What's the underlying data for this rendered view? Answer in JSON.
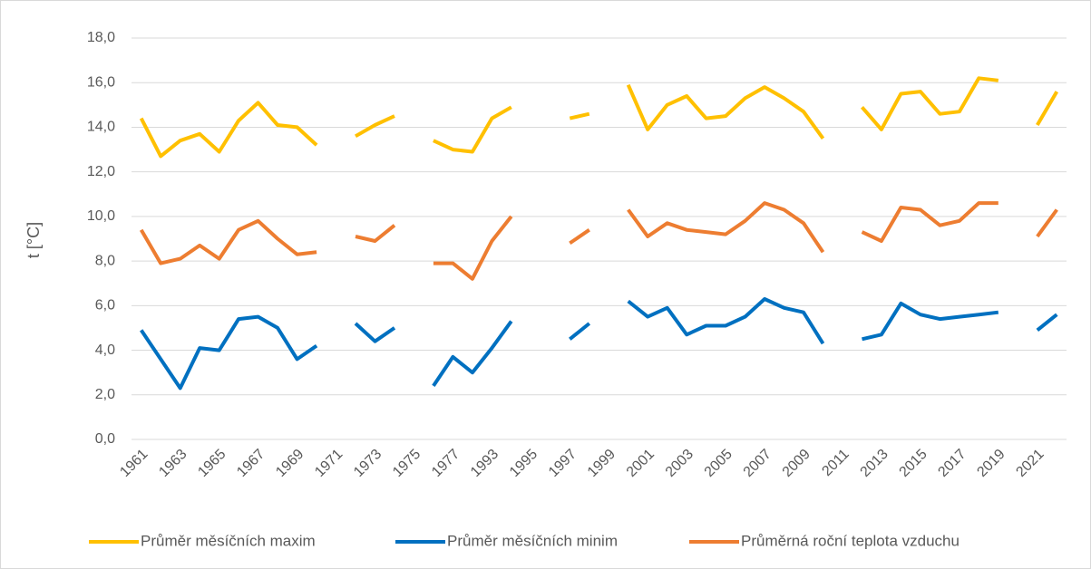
{
  "chart_data": {
    "type": "line",
    "ylabel": "t [°C]",
    "categories": [
      "1961",
      null,
      "1963",
      null,
      "1965",
      null,
      "1967",
      null,
      "1969",
      null,
      "1971",
      null,
      "1973",
      null,
      "1975",
      null,
      "1977",
      null,
      "1993",
      null,
      "1995",
      null,
      "1997",
      null,
      "1999",
      null,
      "2001",
      null,
      "2003",
      null,
      "2005",
      null,
      "2007",
      null,
      "2009",
      null,
      "2011",
      null,
      "2013",
      null,
      "2015",
      null,
      "2017",
      null,
      "2019",
      null,
      "2021",
      null
    ],
    "series": [
      {
        "name": "Průměr měsíčních maxim",
        "color": "#FFC000",
        "values": [
          14.4,
          12.7,
          13.4,
          13.7,
          12.9,
          14.3,
          15.1,
          14.1,
          14.0,
          13.2,
          null,
          13.6,
          14.1,
          14.5,
          null,
          13.4,
          13.0,
          12.9,
          14.4,
          14.9,
          null,
          null,
          14.4,
          14.6,
          null,
          15.9,
          13.9,
          15.0,
          15.4,
          14.4,
          14.5,
          15.3,
          15.8,
          15.3,
          14.7,
          13.5,
          null,
          14.9,
          13.9,
          15.5,
          15.6,
          14.6,
          14.7,
          16.2,
          16.1,
          null,
          14.1,
          15.6
        ]
      },
      {
        "name": "Průměr měsíčních minim",
        "color": "#0070C0",
        "values": [
          4.9,
          3.6,
          2.3,
          4.1,
          4.0,
          5.4,
          5.5,
          5.0,
          3.6,
          4.2,
          null,
          5.2,
          4.4,
          5.0,
          null,
          2.4,
          3.7,
          3.0,
          4.1,
          5.3,
          null,
          null,
          4.5,
          5.2,
          null,
          6.2,
          5.5,
          5.9,
          4.7,
          5.1,
          5.1,
          5.5,
          6.3,
          5.9,
          5.7,
          4.3,
          null,
          4.5,
          4.7,
          6.1,
          5.6,
          5.4,
          5.5,
          5.6,
          5.7,
          null,
          4.9,
          5.6
        ]
      },
      {
        "name": "Průměrná roční teplota vzduchu",
        "color": "#ED7D31",
        "values": [
          9.4,
          7.9,
          8.1,
          8.7,
          8.1,
          9.4,
          9.8,
          9.0,
          8.3,
          8.4,
          null,
          9.1,
          8.9,
          9.6,
          null,
          7.9,
          7.9,
          7.2,
          8.9,
          10.0,
          null,
          null,
          8.8,
          9.4,
          null,
          10.3,
          9.1,
          9.7,
          9.4,
          9.3,
          9.2,
          9.8,
          10.6,
          10.3,
          9.7,
          8.4,
          null,
          9.3,
          8.9,
          10.4,
          10.3,
          9.6,
          9.8,
          10.6,
          10.6,
          null,
          9.1,
          10.3
        ]
      }
    ],
    "ylim": [
      0,
      18
    ],
    "yticks": [
      {
        "value": 0,
        "label": "0,0"
      },
      {
        "value": 2,
        "label": "2,0"
      },
      {
        "value": 4,
        "label": "4,0"
      },
      {
        "value": 6,
        "label": "6,0"
      },
      {
        "value": 8,
        "label": "8,0"
      },
      {
        "value": 10,
        "label": "10,0"
      },
      {
        "value": 12,
        "label": "12,0"
      },
      {
        "value": 14,
        "label": "14,0"
      },
      {
        "value": 16,
        "label": "16,0"
      },
      {
        "value": 18,
        "label": "18,0"
      }
    ],
    "grid": true,
    "legend": "bottom"
  }
}
